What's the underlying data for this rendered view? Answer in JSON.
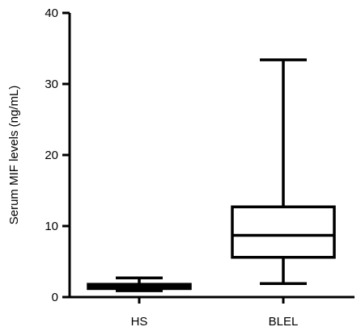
{
  "chart_data": {
    "type": "box",
    "ylabel": "Serum MIF levels (ng/mL)",
    "xlabel": "",
    "ylim": [
      0,
      40
    ],
    "yticks": [
      0,
      10,
      20,
      30,
      40
    ],
    "categories": [
      "HS",
      "BLEL"
    ],
    "boxes": [
      {
        "category": "HS",
        "min": 0.9,
        "q1": 1.2,
        "median": 1.5,
        "q3": 1.8,
        "max": 2.7
      },
      {
        "category": "BLEL",
        "min": 1.9,
        "q1": 5.6,
        "median": 8.7,
        "q3": 12.7,
        "max": 33.4
      }
    ],
    "grid": false,
    "legend": "none"
  }
}
